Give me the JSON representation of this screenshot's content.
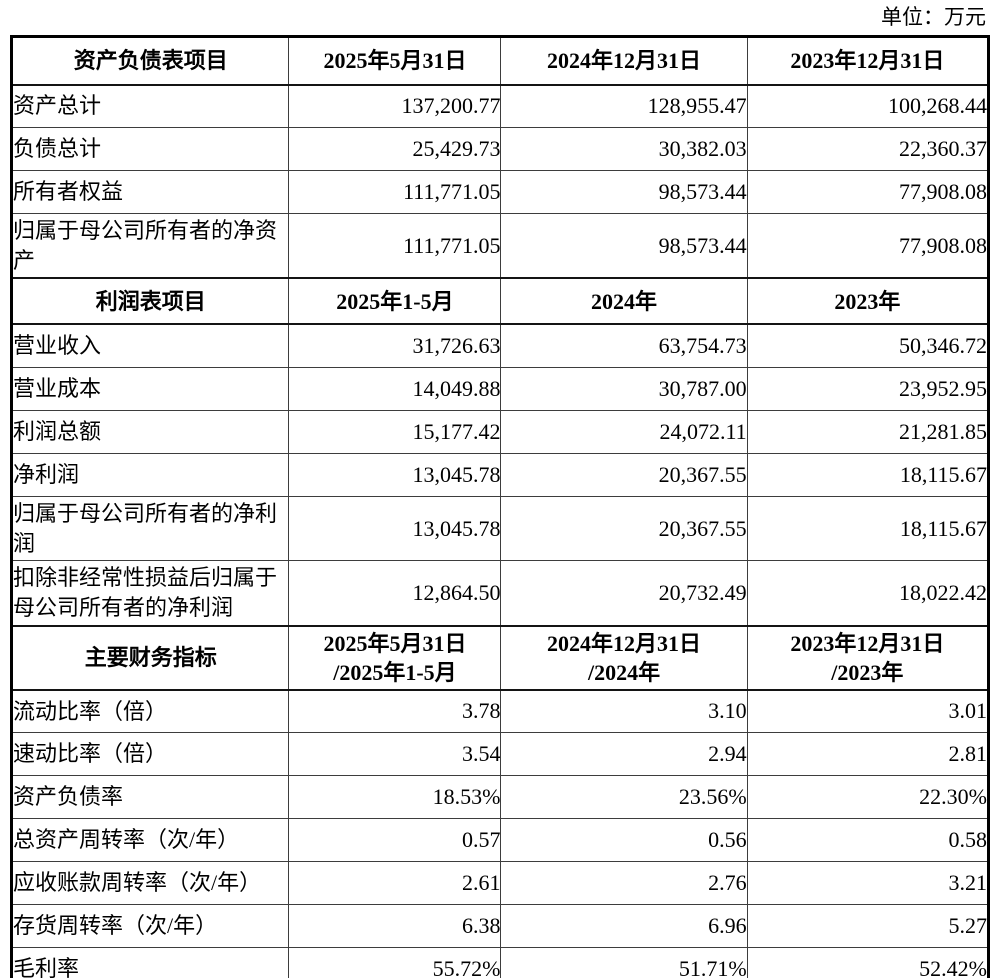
{
  "unit_label": "单位：万元",
  "table": {
    "sections": [
      {
        "header": {
          "label": "资产负债表项目",
          "columns": [
            [
              "2025年5月31日"
            ],
            [
              "2024年12月31日"
            ],
            [
              "2023年12月31日"
            ]
          ],
          "height_class": "h-sec1"
        },
        "rows": [
          {
            "label": "资产总计",
            "values": [
              "137,200.77",
              "128,955.47",
              "100,268.44"
            ],
            "height_class": "r-normal"
          },
          {
            "label": "负债总计",
            "values": [
              "25,429.73",
              "30,382.03",
              "22,360.37"
            ],
            "height_class": "r-normal"
          },
          {
            "label": "所有者权益",
            "values": [
              "111,771.05",
              "98,573.44",
              "77,908.08"
            ],
            "height_class": "r-normal"
          },
          {
            "label": "归属于母公司所有者的净资产",
            "values": [
              "111,771.05",
              "98,573.44",
              "77,908.08"
            ],
            "height_class": "r-tall"
          }
        ]
      },
      {
        "header": {
          "label": "利润表项目",
          "columns": [
            [
              "2025年1-5月"
            ],
            [
              "2024年"
            ],
            [
              "2023年"
            ]
          ],
          "height_class": "h-sec2"
        },
        "rows": [
          {
            "label": "营业收入",
            "values": [
              "31,726.63",
              "63,754.73",
              "50,346.72"
            ],
            "height_class": "r-normal"
          },
          {
            "label": "营业成本",
            "values": [
              "14,049.88",
              "30,787.00",
              "23,952.95"
            ],
            "height_class": "r-normal"
          },
          {
            "label": "利润总额",
            "values": [
              "15,177.42",
              "24,072.11",
              "21,281.85"
            ],
            "height_class": "r-normal"
          },
          {
            "label": "净利润",
            "values": [
              "13,045.78",
              "20,367.55",
              "18,115.67"
            ],
            "height_class": "r-normal"
          },
          {
            "label": "归属于母公司所有者的净利润",
            "values": [
              "13,045.78",
              "20,367.55",
              "18,115.67"
            ],
            "height_class": "r-tall"
          },
          {
            "label": "扣除非经常性损益后归属于母公司所有者的净利润",
            "values": [
              "12,864.50",
              "20,732.49",
              "18,022.42"
            ],
            "height_class": "r-tall2"
          }
        ]
      },
      {
        "header": {
          "label": "主要财务指标",
          "columns": [
            [
              "2025年5月31日",
              "/2025年1-5月"
            ],
            [
              "2024年12月31日",
              "/2024年"
            ],
            [
              "2023年12月31日",
              "/2023年"
            ]
          ],
          "height_class": "h-sec3"
        },
        "rows": [
          {
            "label": "流动比率（倍）",
            "values": [
              "3.78",
              "3.10",
              "3.01"
            ],
            "height_class": "r-normal"
          },
          {
            "label": "速动比率（倍）",
            "values": [
              "3.54",
              "2.94",
              "2.81"
            ],
            "height_class": "r-normal"
          },
          {
            "label": "资产负债率",
            "values": [
              "18.53%",
              "23.56%",
              "22.30%"
            ],
            "height_class": "r-normal"
          },
          {
            "label": "总资产周转率（次/年）",
            "values": [
              "0.57",
              "0.56",
              "0.58"
            ],
            "height_class": "r-normal"
          },
          {
            "label": "应收账款周转率（次/年）",
            "values": [
              "2.61",
              "2.76",
              "3.21"
            ],
            "height_class": "r-normal"
          },
          {
            "label": "存货周转率（次/年）",
            "values": [
              "6.38",
              "6.96",
              "5.27"
            ],
            "height_class": "r-normal"
          },
          {
            "label": "毛利率",
            "values": [
              "55.72%",
              "51.71%",
              "52.42%"
            ],
            "height_class": "r-normal"
          }
        ]
      }
    ]
  }
}
